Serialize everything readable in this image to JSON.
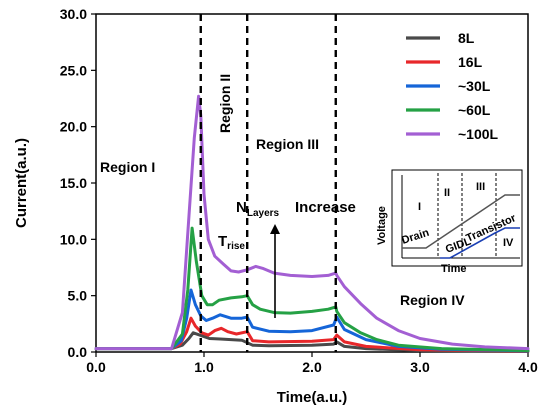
{
  "chart_data": {
    "type": "line",
    "xlabel": "Time(a.u.)",
    "ylabel": "Current(a.u.)",
    "xlim": [
      0,
      4
    ],
    "ylim": [
      0,
      30
    ],
    "xticks": [
      "0.0",
      "1.0",
      "2.0",
      "3.0",
      "4.0"
    ],
    "yticks": [
      "0.0",
      "5.0",
      "10.0",
      "15.0",
      "20.0",
      "25.0",
      "30.0"
    ],
    "region_boundaries": [
      0.97,
      1.4,
      2.22
    ],
    "regions": [
      "Region I",
      "Region II",
      "Region III",
      "Region IV"
    ],
    "annotations": {
      "trise": "T",
      "trise_sub": "rise",
      "nlayers_n": "N",
      "nlayers_sub": "Layers",
      "increase": "Increase"
    },
    "legend_position": "top-right",
    "series": [
      {
        "name": "8L",
        "color": "#4a4a4a",
        "points": [
          [
            0,
            0.3
          ],
          [
            0.7,
            0.3
          ],
          [
            0.8,
            0.6
          ],
          [
            0.86,
            1.2
          ],
          [
            0.9,
            1.7
          ],
          [
            0.96,
            1.5
          ],
          [
            1.05,
            1.2
          ],
          [
            1.15,
            1.15
          ],
          [
            1.25,
            1.1
          ],
          [
            1.35,
            1.05
          ],
          [
            1.45,
            0.6
          ],
          [
            1.6,
            0.55
          ],
          [
            2.0,
            0.6
          ],
          [
            2.2,
            0.7
          ],
          [
            2.23,
            0.9
          ],
          [
            2.3,
            0.5
          ],
          [
            2.5,
            0.3
          ],
          [
            3.0,
            0.12
          ],
          [
            4.0,
            0.05
          ]
        ]
      },
      {
        "name": "16L",
        "color": "#e8272a",
        "points": [
          [
            0,
            0.3
          ],
          [
            0.7,
            0.3
          ],
          [
            0.78,
            0.7
          ],
          [
            0.84,
            1.8
          ],
          [
            0.88,
            3.0
          ],
          [
            0.92,
            2.3
          ],
          [
            0.98,
            1.7
          ],
          [
            1.04,
            1.5
          ],
          [
            1.1,
            1.9
          ],
          [
            1.16,
            2.1
          ],
          [
            1.22,
            1.8
          ],
          [
            1.3,
            1.6
          ],
          [
            1.4,
            1.8
          ],
          [
            1.45,
            1.0
          ],
          [
            1.6,
            0.9
          ],
          [
            2.0,
            0.95
          ],
          [
            2.2,
            1.1
          ],
          [
            2.23,
            1.5
          ],
          [
            2.3,
            0.9
          ],
          [
            2.5,
            0.5
          ],
          [
            3.0,
            0.2
          ],
          [
            4.0,
            0.08
          ]
        ]
      },
      {
        "name": "~30L",
        "color": "#1565d8",
        "points": [
          [
            0,
            0.3
          ],
          [
            0.7,
            0.3
          ],
          [
            0.79,
            1.0
          ],
          [
            0.84,
            3.0
          ],
          [
            0.88,
            5.5
          ],
          [
            0.92,
            4.2
          ],
          [
            0.97,
            3.2
          ],
          [
            1.02,
            2.8
          ],
          [
            1.08,
            3.0
          ],
          [
            1.15,
            3.3
          ],
          [
            1.25,
            3.0
          ],
          [
            1.35,
            3.0
          ],
          [
            1.4,
            3.1
          ],
          [
            1.45,
            2.2
          ],
          [
            1.6,
            1.85
          ],
          [
            1.8,
            1.8
          ],
          [
            2.0,
            1.9
          ],
          [
            2.2,
            2.4
          ],
          [
            2.23,
            3.1
          ],
          [
            2.3,
            2.0
          ],
          [
            2.5,
            1.1
          ],
          [
            2.8,
            0.5
          ],
          [
            3.2,
            0.25
          ],
          [
            4.0,
            0.1
          ]
        ]
      },
      {
        "name": "~60L",
        "color": "#25a145",
        "points": [
          [
            0,
            0.3
          ],
          [
            0.7,
            0.3
          ],
          [
            0.8,
            1.6
          ],
          [
            0.85,
            5.5
          ],
          [
            0.89,
            11.0
          ],
          [
            0.93,
            8.0
          ],
          [
            0.98,
            5.0
          ],
          [
            1.03,
            4.2
          ],
          [
            1.08,
            4.2
          ],
          [
            1.14,
            4.6
          ],
          [
            1.25,
            4.8
          ],
          [
            1.35,
            4.9
          ],
          [
            1.4,
            5.0
          ],
          [
            1.45,
            4.2
          ],
          [
            1.52,
            3.8
          ],
          [
            1.65,
            3.5
          ],
          [
            1.8,
            3.45
          ],
          [
            2.0,
            3.6
          ],
          [
            2.15,
            3.8
          ],
          [
            2.22,
            4.0
          ],
          [
            2.23,
            3.6
          ],
          [
            2.3,
            2.6
          ],
          [
            2.45,
            1.7
          ],
          [
            2.6,
            1.1
          ],
          [
            2.8,
            0.6
          ],
          [
            3.2,
            0.3
          ],
          [
            4.0,
            0.12
          ]
        ]
      },
      {
        "name": "~100L",
        "color": "#a35fd3",
        "points": [
          [
            0,
            0.3
          ],
          [
            0.7,
            0.3
          ],
          [
            0.8,
            3.5
          ],
          [
            0.86,
            12.0
          ],
          [
            0.91,
            19.0
          ],
          [
            0.95,
            22.7
          ],
          [
            0.97,
            21.0
          ],
          [
            1.0,
            14.0
          ],
          [
            1.04,
            10.0
          ],
          [
            1.1,
            8.5
          ],
          [
            1.18,
            7.8
          ],
          [
            1.25,
            7.2
          ],
          [
            1.32,
            7.1
          ],
          [
            1.4,
            7.3
          ],
          [
            1.48,
            7.6
          ],
          [
            1.55,
            7.4
          ],
          [
            1.65,
            7.0
          ],
          [
            1.8,
            6.8
          ],
          [
            2.0,
            6.7
          ],
          [
            2.15,
            6.8
          ],
          [
            2.22,
            7.0
          ],
          [
            2.23,
            6.8
          ],
          [
            2.3,
            5.8
          ],
          [
            2.45,
            4.3
          ],
          [
            2.6,
            3.0
          ],
          [
            2.8,
            1.9
          ],
          [
            3.0,
            1.2
          ],
          [
            3.3,
            0.7
          ],
          [
            3.6,
            0.45
          ],
          [
            4.0,
            0.3
          ]
        ]
      }
    ],
    "inset": {
      "ylabel": "Voltage",
      "xlabel": "Time",
      "labels": {
        "region1": "I",
        "region2": "II",
        "region3": "III",
        "region4": "IV",
        "drain": "Drain",
        "gidl": "GIDL",
        "transistor": "Transistor"
      }
    }
  }
}
